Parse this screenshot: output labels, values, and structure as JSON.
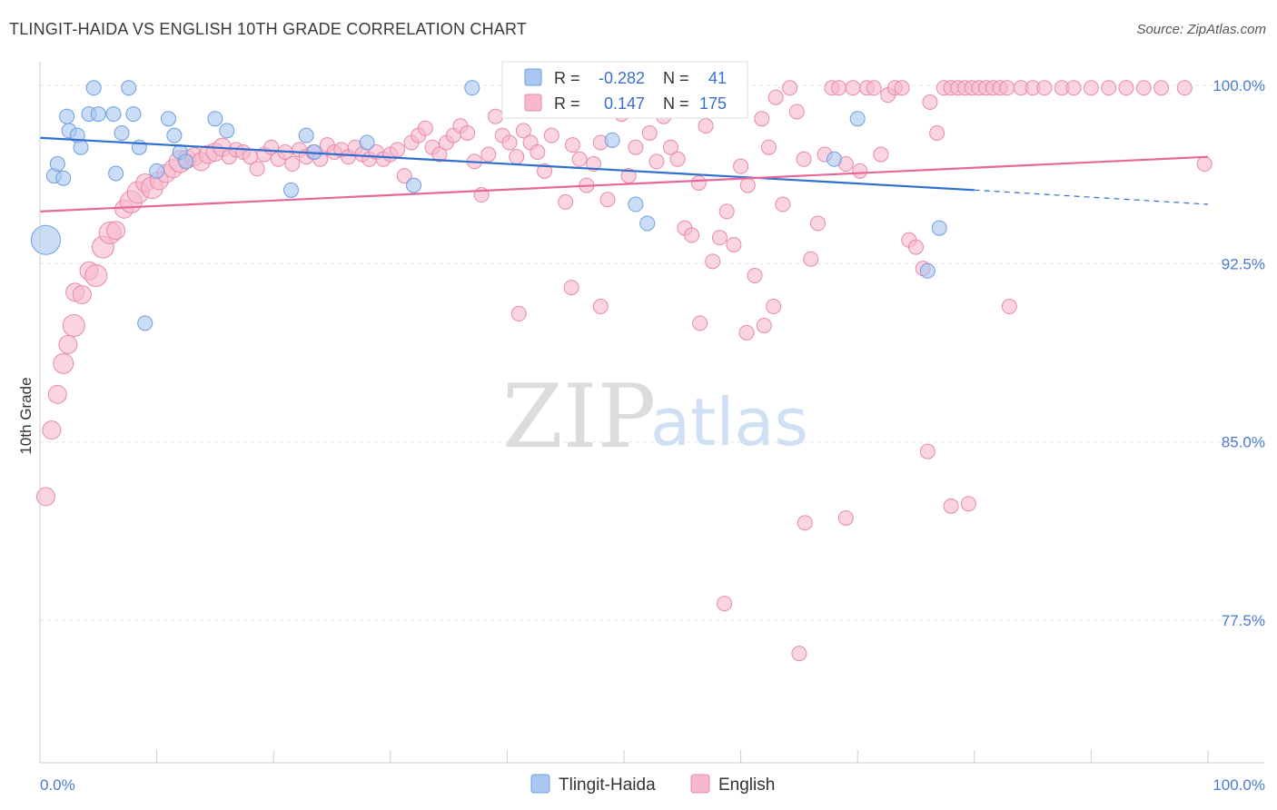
{
  "title": "TLINGIT-HAIDA VS ENGLISH 10TH GRADE CORRELATION CHART",
  "source": "Source: ZipAtlas.com",
  "watermark": {
    "zip": "ZIP",
    "atlas": "atlas"
  },
  "legend": {
    "r_label": "R =",
    "n_label": "N =",
    "rows": [
      {
        "r": "-0.282",
        "n": "41",
        "color": "#a9c7f0",
        "stroke": "#6f9fe0"
      },
      {
        "r": "0.147",
        "n": "175",
        "color": "#f7b8cb",
        "stroke": "#e88aa7"
      }
    ]
  },
  "colors": {
    "blue_fill": "#a9c7f0",
    "blue_stroke": "#6f9fe0",
    "blue_line": "#2e6fd0",
    "pink_fill": "#f7b8cb",
    "pink_stroke": "#e88aa7",
    "pink_line": "#e8679a",
    "grid": "#e6e6e6",
    "axis": "#cccccc"
  },
  "chart_data": {
    "type": "scatter",
    "title": "TLINGIT-HAIDA VS ENGLISH 10TH GRADE CORRELATION CHART",
    "xlabel": "",
    "ylabel": "10th Grade",
    "x_tick_labels": [
      "0.0%",
      "100.0%"
    ],
    "y_tick_labels": [
      "100.0%",
      "92.5%",
      "85.0%",
      "77.5%"
    ],
    "y_ticks": [
      100.0,
      92.5,
      85.0,
      77.5
    ],
    "xlim": [
      0,
      100
    ],
    "ylim": [
      71.5,
      101.0
    ],
    "grid": true,
    "legend_position": "bottom",
    "series": [
      {
        "name": "Tlingit-Haida",
        "trend": {
          "x": [
            0,
            80,
            100
          ],
          "y": [
            97.8,
            95.6,
            95.0
          ],
          "solid_until": 80
        },
        "points": [
          [
            0.5,
            93.5,
            16
          ],
          [
            1.2,
            96.2,
            8
          ],
          [
            1.5,
            96.7,
            8
          ],
          [
            2.0,
            96.1,
            8
          ],
          [
            2.3,
            98.7,
            8
          ],
          [
            2.5,
            98.1,
            8
          ],
          [
            3.2,
            97.9,
            8
          ],
          [
            3.5,
            97.4,
            8
          ],
          [
            4.2,
            98.8,
            8
          ],
          [
            4.6,
            99.9,
            8
          ],
          [
            5.0,
            98.8,
            8
          ],
          [
            6.3,
            98.8,
            8
          ],
          [
            6.5,
            96.3,
            8
          ],
          [
            7.0,
            98.0,
            8
          ],
          [
            7.6,
            99.9,
            8
          ],
          [
            8.0,
            98.8,
            8
          ],
          [
            8.5,
            97.4,
            8
          ],
          [
            9.0,
            90.0,
            8
          ],
          [
            10.0,
            96.4,
            8
          ],
          [
            11.0,
            98.6,
            8
          ],
          [
            11.5,
            97.9,
            8
          ],
          [
            12.0,
            97.2,
            8
          ],
          [
            12.5,
            96.8,
            8
          ],
          [
            15.0,
            98.6,
            8
          ],
          [
            16.0,
            98.1,
            8
          ],
          [
            21.5,
            95.6,
            8
          ],
          [
            22.8,
            97.9,
            8
          ],
          [
            23.5,
            97.2,
            8
          ],
          [
            28.0,
            97.6,
            8
          ],
          [
            32.0,
            95.8,
            8
          ],
          [
            37.0,
            99.9,
            8
          ],
          [
            49.0,
            97.7,
            8
          ],
          [
            51.0,
            95.0,
            8
          ],
          [
            52.0,
            94.2,
            8
          ],
          [
            68.0,
            96.9,
            8
          ],
          [
            70.0,
            98.6,
            8
          ],
          [
            76.0,
            92.2,
            8
          ],
          [
            77.0,
            94.0,
            8
          ]
        ]
      },
      {
        "name": "English",
        "trend": {
          "x": [
            0,
            100
          ],
          "y": [
            94.7,
            97.0
          ]
        },
        "points": [
          [
            0.5,
            82.7,
            10
          ],
          [
            1.0,
            85.5,
            10
          ],
          [
            1.5,
            87.0,
            10
          ],
          [
            2.0,
            88.3,
            11
          ],
          [
            2.4,
            89.1,
            10
          ],
          [
            2.9,
            89.9,
            12
          ],
          [
            3.0,
            91.3,
            10
          ],
          [
            3.6,
            91.2,
            10
          ],
          [
            4.2,
            92.2,
            10
          ],
          [
            4.8,
            92.0,
            12
          ],
          [
            5.4,
            93.2,
            12
          ],
          [
            6.0,
            93.8,
            12
          ],
          [
            6.5,
            93.9,
            10
          ],
          [
            7.2,
            94.8,
            10
          ],
          [
            7.8,
            95.1,
            12
          ],
          [
            8.4,
            95.5,
            12
          ],
          [
            9.0,
            95.9,
            10
          ],
          [
            9.6,
            95.7,
            12
          ],
          [
            10.2,
            96.0,
            10
          ],
          [
            10.8,
            96.3,
            10
          ],
          [
            11.4,
            96.5,
            10
          ],
          [
            12.0,
            96.8,
            12
          ],
          [
            12.6,
            96.9,
            10
          ],
          [
            13.2,
            97.0,
            10
          ],
          [
            13.8,
            96.8,
            10
          ],
          [
            14.4,
            97.1,
            10
          ],
          [
            15.0,
            97.2,
            10
          ],
          [
            15.6,
            97.4,
            10
          ],
          [
            16.2,
            97.0,
            8
          ],
          [
            16.8,
            97.3,
            8
          ],
          [
            17.4,
            97.2,
            8
          ],
          [
            18.0,
            97.0,
            8
          ],
          [
            18.6,
            96.5,
            8
          ],
          [
            19.2,
            97.1,
            8
          ],
          [
            19.8,
            97.4,
            8
          ],
          [
            20.4,
            96.9,
            8
          ],
          [
            21.0,
            97.2,
            8
          ],
          [
            21.6,
            96.7,
            8
          ],
          [
            22.2,
            97.3,
            8
          ],
          [
            22.8,
            97.0,
            8
          ],
          [
            23.4,
            97.2,
            8
          ],
          [
            24.0,
            96.9,
            8
          ],
          [
            24.6,
            97.5,
            8
          ],
          [
            25.2,
            97.2,
            8
          ],
          [
            25.8,
            97.3,
            8
          ],
          [
            26.4,
            97.0,
            8
          ],
          [
            27.0,
            97.4,
            8
          ],
          [
            27.6,
            97.1,
            8
          ],
          [
            28.2,
            96.9,
            8
          ],
          [
            28.8,
            97.2,
            8
          ],
          [
            29.4,
            96.9,
            8
          ],
          [
            30.0,
            97.1,
            8
          ],
          [
            30.6,
            97.3,
            8
          ],
          [
            31.2,
            96.2,
            8
          ],
          [
            31.8,
            97.6,
            8
          ],
          [
            32.4,
            97.9,
            8
          ],
          [
            33.0,
            98.2,
            8
          ],
          [
            33.6,
            97.4,
            8
          ],
          [
            34.2,
            97.1,
            8
          ],
          [
            34.8,
            97.6,
            8
          ],
          [
            35.4,
            97.9,
            8
          ],
          [
            36.0,
            98.3,
            8
          ],
          [
            36.6,
            98.0,
            8
          ],
          [
            37.2,
            96.8,
            8
          ],
          [
            37.8,
            95.4,
            8
          ],
          [
            38.4,
            97.1,
            8
          ],
          [
            39.0,
            98.7,
            8
          ],
          [
            39.6,
            97.9,
            8
          ],
          [
            40.2,
            97.6,
            8
          ],
          [
            40.8,
            97.0,
            8
          ],
          [
            41.4,
            98.1,
            8
          ],
          [
            42.0,
            97.6,
            8
          ],
          [
            42.6,
            97.2,
            8
          ],
          [
            43.2,
            96.4,
            8
          ],
          [
            43.8,
            97.9,
            8
          ],
          [
            44.4,
            99.3,
            8
          ],
          [
            45.0,
            95.1,
            8
          ],
          [
            45.6,
            97.5,
            8
          ],
          [
            46.2,
            96.9,
            8
          ],
          [
            46.8,
            95.8,
            8
          ],
          [
            47.4,
            96.7,
            8
          ],
          [
            48.0,
            97.6,
            8
          ],
          [
            48.6,
            95.2,
            8
          ],
          [
            49.2,
            99.9,
            8
          ],
          [
            49.8,
            98.8,
            8
          ],
          [
            50.4,
            96.2,
            8
          ],
          [
            51.0,
            97.4,
            8
          ],
          [
            51.6,
            99.6,
            8
          ],
          [
            52.2,
            98.0,
            8
          ],
          [
            52.8,
            96.8,
            8
          ],
          [
            53.4,
            98.7,
            8
          ],
          [
            54.0,
            97.4,
            8
          ],
          [
            54.6,
            96.9,
            8
          ],
          [
            55.2,
            94.0,
            8
          ],
          [
            55.8,
            93.7,
            8
          ],
          [
            56.4,
            95.9,
            8
          ],
          [
            57.0,
            98.3,
            8
          ],
          [
            57.6,
            92.6,
            8
          ],
          [
            58.2,
            93.6,
            8
          ],
          [
            58.8,
            94.7,
            8
          ],
          [
            59.4,
            93.3,
            8
          ],
          [
            60.0,
            96.6,
            8
          ],
          [
            60.6,
            95.8,
            8
          ],
          [
            61.2,
            92.0,
            8
          ],
          [
            61.8,
            98.6,
            8
          ],
          [
            62.4,
            97.4,
            8
          ],
          [
            63.0,
            99.5,
            8
          ],
          [
            63.6,
            95.0,
            8
          ],
          [
            64.2,
            99.9,
            8
          ],
          [
            64.8,
            98.9,
            8
          ],
          [
            65.4,
            96.9,
            8
          ],
          [
            66.0,
            92.7,
            8
          ],
          [
            66.6,
            94.2,
            8
          ],
          [
            67.2,
            97.1,
            8
          ],
          [
            67.8,
            99.9,
            8
          ],
          [
            68.4,
            99.9,
            8
          ],
          [
            69.0,
            96.7,
            8
          ],
          [
            69.6,
            99.9,
            8
          ],
          [
            70.2,
            96.4,
            8
          ],
          [
            70.8,
            99.9,
            8
          ],
          [
            71.4,
            99.9,
            8
          ],
          [
            72.0,
            97.1,
            8
          ],
          [
            72.6,
            99.6,
            8
          ],
          [
            73.2,
            99.9,
            8
          ],
          [
            73.8,
            99.9,
            8
          ],
          [
            74.4,
            93.5,
            8
          ],
          [
            75.0,
            93.2,
            8
          ],
          [
            75.6,
            92.3,
            8
          ],
          [
            76.2,
            99.3,
            8
          ],
          [
            76.8,
            98.0,
            8
          ],
          [
            77.4,
            99.9,
            8
          ],
          [
            78.0,
            99.9,
            8
          ],
          [
            78.6,
            99.9,
            8
          ],
          [
            79.2,
            99.9,
            8
          ],
          [
            79.8,
            99.9,
            8
          ],
          [
            80.4,
            99.9,
            8
          ],
          [
            81.0,
            99.9,
            8
          ],
          [
            81.6,
            99.9,
            8
          ],
          [
            82.2,
            99.9,
            8
          ],
          [
            82.8,
            99.9,
            8
          ],
          [
            84.0,
            99.9,
            8
          ],
          [
            85.0,
            99.9,
            8
          ],
          [
            86.0,
            99.9,
            8
          ],
          [
            87.5,
            99.9,
            8
          ],
          [
            88.5,
            99.9,
            8
          ],
          [
            90.0,
            99.9,
            8
          ],
          [
            91.5,
            99.9,
            8
          ],
          [
            93.0,
            99.9,
            8
          ],
          [
            94.5,
            99.9,
            8
          ],
          [
            96.0,
            99.9,
            8
          ],
          [
            98.0,
            99.9,
            8
          ],
          [
            99.7,
            96.7,
            8
          ],
          [
            41.0,
            90.4,
            8
          ],
          [
            45.5,
            91.5,
            8
          ],
          [
            48.0,
            90.7,
            8
          ],
          [
            56.5,
            90.0,
            8
          ],
          [
            60.5,
            89.6,
            8
          ],
          [
            62.0,
            89.9,
            8
          ],
          [
            62.8,
            90.7,
            8
          ],
          [
            76.0,
            84.6,
            8
          ],
          [
            78.0,
            82.3,
            8
          ],
          [
            79.5,
            82.4,
            8
          ],
          [
            65.5,
            81.6,
            8
          ],
          [
            69.0,
            81.8,
            8
          ],
          [
            58.6,
            78.2,
            8
          ],
          [
            65.0,
            76.1,
            8
          ],
          [
            83.0,
            90.7,
            8
          ]
        ]
      }
    ]
  },
  "bottom_legend": [
    {
      "label": "Tlingit-Haida"
    },
    {
      "label": "English"
    }
  ]
}
